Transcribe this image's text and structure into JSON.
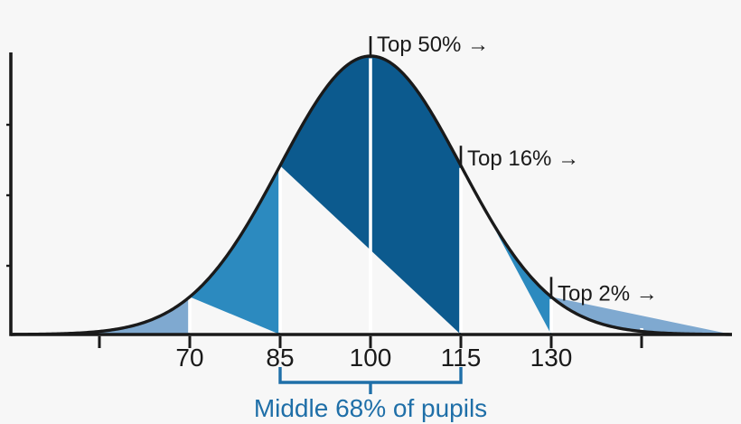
{
  "figure": {
    "background": "#f7f7f7",
    "axis_color": "#1a1a1a"
  },
  "chart_data": {
    "type": "area",
    "title": "",
    "distribution": "normal",
    "mean": 100,
    "sd": 15,
    "grid": false,
    "x_axis": {
      "ticks": [
        {
          "value": 55,
          "label": ""
        },
        {
          "value": 70,
          "label": "70"
        },
        {
          "value": 85,
          "label": "85"
        },
        {
          "value": 100,
          "label": "100"
        },
        {
          "value": 115,
          "label": "115"
        },
        {
          "value": 130,
          "label": "130"
        },
        {
          "value": 145,
          "label": ""
        }
      ]
    },
    "segments": [
      {
        "from": 40,
        "to": 70,
        "color": "#7fa9d0",
        "name": "left-tail-below-70"
      },
      {
        "from": 70,
        "to": 85,
        "color": "#2c8abf",
        "name": "70-to-85"
      },
      {
        "from": 85,
        "to": 115,
        "color": "#0c5a8e",
        "name": "middle-68-band"
      },
      {
        "from": 115,
        "to": 130,
        "color": "#2c8abf",
        "name": "115-to-130"
      },
      {
        "from": 130,
        "to": 160,
        "color": "#7fa9d0",
        "name": "right-tail-above-130"
      }
    ],
    "separators": [
      55,
      70,
      85,
      100,
      115,
      130,
      145
    ],
    "annotations": [
      {
        "text": "Top 50% →",
        "value": 100
      },
      {
        "text": "Top 16% →",
        "value": 115
      },
      {
        "text": "Top 2% →",
        "value": 130
      }
    ],
    "bracket": {
      "from": 85,
      "to": 115,
      "label": "Middle 68% of pupils",
      "color": "#1f6fa8"
    }
  }
}
